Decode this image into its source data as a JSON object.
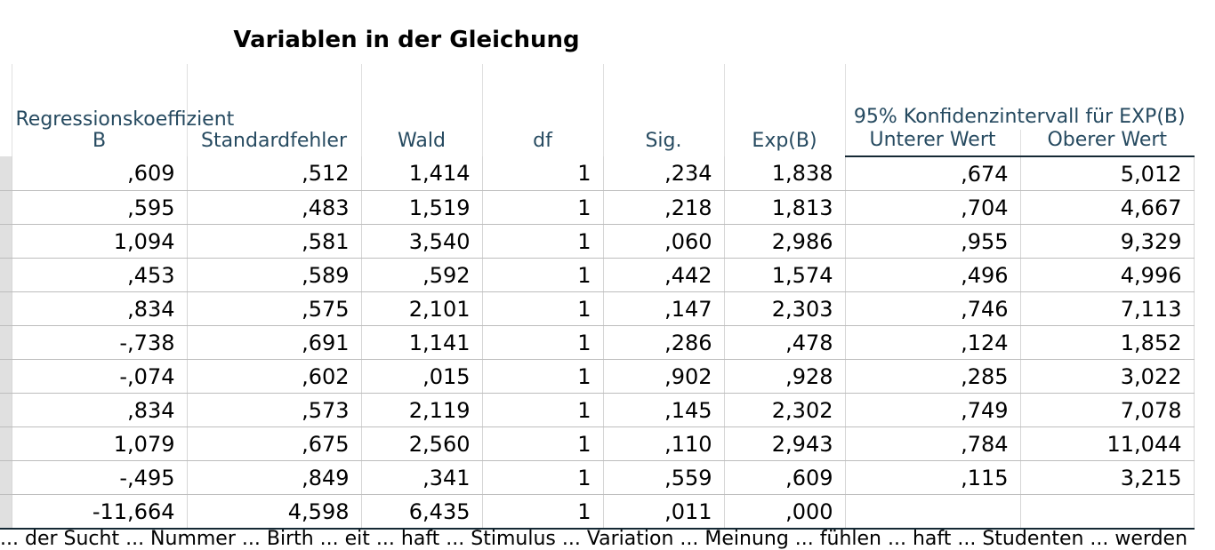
{
  "title": "Variablen in der Gleichung",
  "headers": {
    "b": "Regressionskoeffizient B",
    "se": "Standardfehler",
    "wald": "Wald",
    "df": "df",
    "sig": "Sig.",
    "expb": "Exp(B)",
    "ci_group": "95% Konfidenzintervall für EXP(B)",
    "lower": "Unterer Wert",
    "upper": "Oberer Wert"
  },
  "rows": [
    [
      "",
      ",609",
      ",512",
      "1,414",
      "1",
      ",234",
      "1,838",
      ",674",
      "5,012"
    ],
    [
      "",
      ",595",
      ",483",
      "1,519",
      "1",
      ",218",
      "1,813",
      ",704",
      "4,667"
    ],
    [
      "",
      "1,094",
      ",581",
      "3,540",
      "1",
      ",060",
      "2,986",
      ",955",
      "9,329"
    ],
    [
      "",
      ",453",
      ",589",
      ",592",
      "1",
      ",442",
      "1,574",
      ",496",
      "4,996"
    ],
    [
      "",
      ",834",
      ",575",
      "2,101",
      "1",
      ",147",
      "2,303",
      ",746",
      "7,113"
    ],
    [
      "",
      "-,738",
      ",691",
      "1,141",
      "1",
      ",286",
      ",478",
      ",124",
      "1,852"
    ],
    [
      "",
      "-,074",
      ",602",
      ",015",
      "1",
      ",902",
      ",928",
      ",285",
      "3,022"
    ],
    [
      "",
      ",834",
      ",573",
      "2,119",
      "1",
      ",145",
      "2,302",
      ",749",
      "7,078"
    ],
    [
      "",
      "1,079",
      ",675",
      "2,560",
      "1",
      ",110",
      "2,943",
      ",784",
      "11,044"
    ],
    [
      "",
      "-,495",
      ",849",
      ",341",
      "1",
      ",559",
      ",609",
      ",115",
      "3,215"
    ],
    [
      "",
      "-11,664",
      "4,598",
      "6,435",
      "1",
      ",011",
      ",000",
      "",
      ""
    ]
  ],
  "footnote": "... der Sucht ... Nummer ... Birth ... eit ... haft ... Stimulus ... Variation ... Meinung ... fühlen ... haft ... Studenten ... werden"
}
